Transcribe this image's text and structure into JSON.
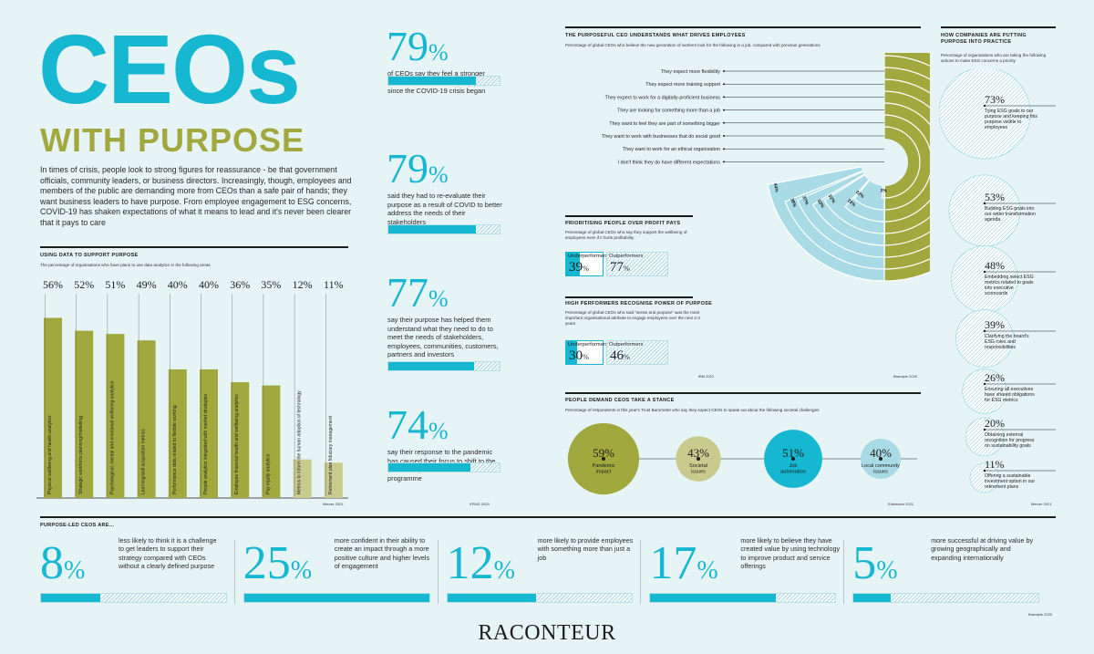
{
  "header": {
    "title_main": "CEOs",
    "title_sub": "WITH PURPOSE",
    "intro": "In times of crisis, people look to strong figures for reassurance - be that government officials, community leaders, or business directors. Increasingly, though, employees and members of the public are demanding more from CEOs than a safe pair of hands; they want business leaders to have purpose. From employee engagement to ESG concerns, COVID-19 has shaken expectations of what it means to lead and it's never been clearer that it pays to care"
  },
  "colors": {
    "cyan": "#16b7d1",
    "olive": "#a0a83e",
    "pale_olive": "#c8cb8d",
    "light_blue": "#a9dbe6",
    "background": "#e7f4f6"
  },
  "analytics": {
    "title": "USING DATA TO SUPPORT PURPOSE",
    "subtitle": "The percentage of organisations who have plans to use data analytics in the following areas",
    "source": "Mercer 2021"
  },
  "stats_col": {
    "source": "KPMG 2020",
    "items": [
      {
        "value": "79",
        "text": "of CEOs say they feel a stronger connection to their company purpose since the COVID-19 crisis began",
        "fill": 0.79
      },
      {
        "value": "79",
        "text": "said they had to re-evaluate their purpose as a result of COVID to better address the needs of their stakeholders",
        "fill": 0.79
      },
      {
        "value": "77",
        "text": "say their purpose has helped them understand what they need to do to meet the needs of stakeholders, employees, communities, customers, partners and investors",
        "fill": 0.77
      },
      {
        "value": "74",
        "text": "say their response to the pandemic has caused their focus to shift to the social component of their ESG programme",
        "fill": 0.74
      }
    ]
  },
  "drivers": {
    "title": "THE PURPOSEFUL CEO UNDERSTANDS WHAT DRIVES EMPLOYEES",
    "subtitle": "Percentage of global CEOs who believe the new generation of workers look for the following in a job, compared with previous generations",
    "source_left": "IBM 2021",
    "source_right": "Brandpie 2020"
  },
  "people_profit": {
    "title": "PRIORITISING PEOPLE OVER PROFIT PAYS",
    "subtitle": "Percentage of global CEOs who say they support the wellbeing of employees even if it hurts profitability",
    "under_label": "Underperformers",
    "under_value": "39",
    "under_fill": 0.39,
    "out_label": "Outperformers",
    "out_value": "77",
    "out_fill": 0.77
  },
  "high_perf": {
    "title": "HIGH PERFORMERS RECOGNISE POWER OF PURPOSE",
    "subtitle": "Percentage of global CEOs who said \"sense and purpose\" was the most important organisational attribute to engage employees over the next 2-3 years",
    "under_label": "Underperformers",
    "under_value": "30",
    "under_fill": 0.3,
    "out_label": "Outperformers",
    "out_value": "46",
    "out_fill": 0.46
  },
  "stance": {
    "title": "PEOPLE DEMAND CEOs TAKE A STANCE",
    "subtitle": "Percentage of respondents in this year's Trust Barometer who say they expect CEOs to speak out about the following societal challenges",
    "source": "Edelmann 2021"
  },
  "esg": {
    "title": "HOW COMPANIES ARE PUTTING PURPOSE INTO PRACTICE",
    "subtitle": "Percentage of organisations who are taking the following actions to make ESG concerns a priority",
    "source": "Mercer 2021"
  },
  "purpose_led": {
    "title": "PURPOSE-LED CEOs ARE...",
    "source": "Brandpie 2020",
    "items": [
      {
        "value": "8",
        "text": "less likely to think it is a challenge to get leaders to support their strategy compared with CEOs without a clearly defined purpose",
        "fill": 0.08
      },
      {
        "value": "25",
        "text": "more confident in their ability to create an impact through a more positive culture and higher levels of engagement",
        "fill": 0.25
      },
      {
        "value": "12",
        "text": "more likely to provide employees with something more than just a job",
        "fill": 0.12
      },
      {
        "value": "17",
        "text": "more likely to believe they have created value by using technology to improve product and service offerings",
        "fill": 0.17
      },
      {
        "value": "5",
        "text": "more successful at driving value by growing geographically and expanding internationally",
        "fill": 0.05
      }
    ]
  },
  "footer": {
    "brand": "RACONTEUR"
  },
  "chart_data": [
    {
      "type": "bar",
      "title": "USING DATA TO SUPPORT PURPOSE",
      "categories": [
        "Physical wellbeing and health analytics",
        "Strategic workforce planning/modelling",
        "Psychological, mental and emotional wellbeing analytics",
        "Learning/skill acquisition metrics",
        "Performance data related to flexible working",
        "People analytics integrated with market strategies",
        "Employee financial health and wellbeing analytics",
        "Pay equity analytics",
        "Metrics to inform the human adoption of technology",
        "Retirement plan fiduciary management"
      ],
      "values": [
        56,
        52,
        51,
        49,
        40,
        40,
        36,
        35,
        12,
        11
      ],
      "labels": [
        "56%",
        "52%",
        "51%",
        "49%",
        "40%",
        "40%",
        "36%",
        "35%",
        "12%",
        "11%"
      ],
      "ylim": [
        0,
        60
      ]
    },
    {
      "type": "bar",
      "title": "THE PURPOSEFUL CEO UNDERSTANDS WHAT DRIVES EMPLOYEES",
      "categories": [
        "They expect more flexibility",
        "They expect more training support",
        "They expect to work for a digitally-proficient business",
        "They are looking for something more than a job",
        "They want to feel they are part of something bigger",
        "They want to work with businesses that do social good",
        "They want to work for an ethical organisation",
        "I don't think they do have different expectations"
      ],
      "values": [
        44,
        38,
        37,
        33,
        32,
        23,
        22,
        2
      ],
      "labels": [
        "44%",
        "38%",
        "37%",
        "33%",
        "32%",
        "23%",
        "22%",
        "2%"
      ]
    },
    {
      "type": "bar",
      "title": "PEOPLE DEMAND CEOs TAKE A STANCE",
      "categories": [
        "Pandemic impact",
        "Societal issues",
        "Job automation",
        "Local community issues"
      ],
      "values": [
        59,
        43,
        51,
        40
      ],
      "labels": [
        "59%",
        "43%",
        "51%",
        "40%"
      ]
    },
    {
      "type": "bar",
      "title": "HOW COMPANIES ARE PUTTING PURPOSE INTO PRACTICE",
      "categories": [
        "Tying ESG goals to our purpose and keeping this purpose visible to employees",
        "Building ESG goals into our wider transformation agenda",
        "Embedding select ESG metrics related to goals into executive scorecards",
        "Clarifying the board's ESG roles and responsibilities",
        "Ensuring all executives have shared obligations for ESG metrics",
        "Obtaining external recognition for progress on sustainability goals",
        "Offering a sustainable investment option in our retirement plans"
      ],
      "values": [
        73,
        53,
        48,
        39,
        26,
        20,
        11
      ],
      "labels": [
        "73%",
        "53%",
        "48%",
        "39%",
        "26%",
        "20%",
        "11%"
      ]
    }
  ]
}
